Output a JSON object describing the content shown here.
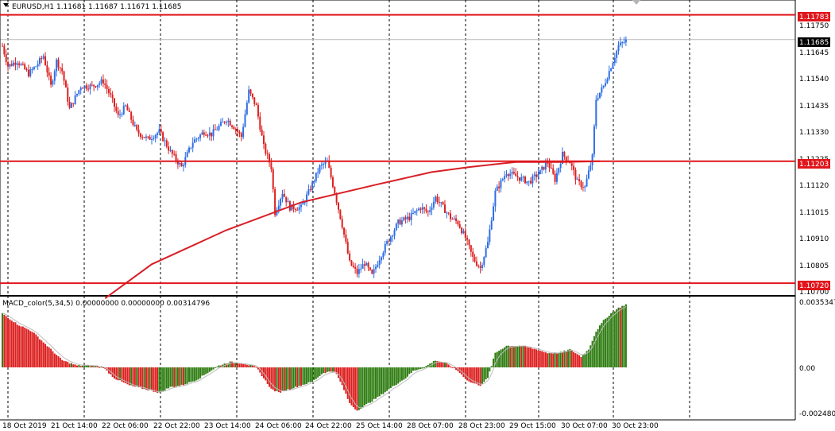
{
  "window": {
    "title": "EURUSD,H1  1.11681 1.11687 1.11671 1.11685",
    "collapse_icon": "triangle-down-icon"
  },
  "colors": {
    "bull": "#2f6ee5",
    "bear": "#dd2020",
    "level_line": "#e0161b",
    "ma_line": "#d81f26",
    "macd_up": "#2f7d12",
    "macd_down": "#dd2020",
    "signal_line": "#bdbdbd",
    "grid": "#000000",
    "bid_line": "#b9b9b9"
  },
  "price_axis": {
    "labels": [
      "1.11750",
      "1.11645",
      "1.11540",
      "1.11435",
      "1.11330",
      "1.11225",
      "1.11120",
      "1.11015",
      "1.10910",
      "1.10805",
      "1.10700"
    ],
    "tags": [
      {
        "text": "1.11783",
        "kind": "level"
      },
      {
        "text": "1.11685",
        "kind": "bid"
      },
      {
        "text": "1.11203",
        "kind": "level"
      },
      {
        "text": "1.10720",
        "kind": "level"
      }
    ]
  },
  "macd_panel": {
    "title": "MACD_color(5,34,5) 0.00000000 0.00000000 0.00314796",
    "labels": [
      "0.0035347",
      "0.00",
      "-0.002480"
    ]
  },
  "time_axis": {
    "labels": [
      "18 Oct 2019",
      "21 Oct 14:00",
      "22 Oct 06:00",
      "22 Oct 22:00",
      "23 Oct 14:00",
      "24 Oct 06:00",
      "24 Oct 22:00",
      "25 Oct 14:00",
      "28 Oct 07:00",
      "28 Oct 23:00",
      "29 Oct 15:00",
      "30 Oct 07:00",
      "30 Oct 23:00"
    ]
  },
  "chart_data": {
    "type": "candlestick",
    "symbol": "EURUSD",
    "timeframe": "H1",
    "y_range": [
      1.1067,
      1.1181
    ],
    "horizontal_levels": [
      1.11783,
      1.11203,
      1.1072
    ],
    "bid": 1.11685,
    "price_path": [
      [
        0,
        1.1166
      ],
      [
        3,
        1.1158
      ],
      [
        8,
        1.116
      ],
      [
        14,
        1.1155
      ],
      [
        18,
        1.1158
      ],
      [
        22,
        1.1162
      ],
      [
        26,
        1.115
      ],
      [
        29,
        1.116
      ],
      [
        32,
        1.1156
      ],
      [
        36,
        1.1141
      ],
      [
        42,
        1.115
      ],
      [
        48,
        1.115
      ],
      [
        54,
        1.1152
      ],
      [
        58,
        1.1146
      ],
      [
        62,
        1.1138
      ],
      [
        66,
        1.1142
      ],
      [
        72,
        1.1132
      ],
      [
        78,
        1.1129
      ],
      [
        84,
        1.1132
      ],
      [
        90,
        1.1124
      ],
      [
        96,
        1.1118
      ],
      [
        102,
        1.1128
      ],
      [
        108,
        1.1132
      ],
      [
        112,
        1.1131
      ],
      [
        116,
        1.1134
      ],
      [
        120,
        1.1137
      ],
      [
        124,
        1.1134
      ],
      [
        128,
        1.113
      ],
      [
        132,
        1.1148
      ],
      [
        136,
        1.1142
      ],
      [
        140,
        1.1126
      ],
      [
        144,
        1.1118
      ],
      [
        146,
        1.11
      ],
      [
        150,
        1.1108
      ],
      [
        154,
        1.1102
      ],
      [
        160,
        1.1102
      ],
      [
        164,
        1.1108
      ],
      [
        170,
        1.1118
      ],
      [
        174,
        1.112
      ],
      [
        178,
        1.1108
      ],
      [
        182,
        1.1095
      ],
      [
        186,
        1.108
      ],
      [
        190,
        1.1076
      ],
      [
        194,
        1.108
      ],
      [
        198,
        1.1075
      ],
      [
        202,
        1.1082
      ],
      [
        206,
        1.1088
      ],
      [
        212,
        1.1096
      ],
      [
        218,
        1.1098
      ],
      [
        224,
        1.1102
      ],
      [
        228,
        1.11
      ],
      [
        232,
        1.1106
      ],
      [
        236,
        1.1102
      ],
      [
        240,
        1.1098
      ],
      [
        244,
        1.1096
      ],
      [
        248,
        1.109
      ],
      [
        252,
        1.1082
      ],
      [
        256,
        1.1078
      ],
      [
        260,
        1.1088
      ],
      [
        264,
        1.1108
      ],
      [
        270,
        1.1116
      ],
      [
        276,
        1.1114
      ],
      [
        282,
        1.1112
      ],
      [
        288,
        1.1116
      ],
      [
        292,
        1.112
      ],
      [
        296,
        1.1113
      ],
      [
        300,
        1.1123
      ],
      [
        304,
        1.112
      ],
      [
        308,
        1.1112
      ],
      [
        312,
        1.111
      ],
      [
        316,
        1.1122
      ],
      [
        318,
        1.1145
      ],
      [
        322,
        1.115
      ],
      [
        326,
        1.1158
      ],
      [
        330,
        1.1166
      ],
      [
        334,
        1.1168
      ]
    ],
    "ma_path": [
      [
        55,
        1.1066
      ],
      [
        80,
        1.10795
      ],
      [
        120,
        1.1093
      ],
      [
        160,
        1.1104
      ],
      [
        200,
        1.1111
      ],
      [
        230,
        1.1116
      ],
      [
        250,
        1.1118
      ],
      [
        275,
        1.112
      ],
      [
        300,
        1.112
      ],
      [
        320,
        1.11203
      ]
    ],
    "macd_path": [
      [
        0,
        0.003
      ],
      [
        8,
        0.0024
      ],
      [
        16,
        0.002
      ],
      [
        24,
        0.0012
      ],
      [
        32,
        0.0004
      ],
      [
        40,
        0.0001
      ],
      [
        48,
        0.0001
      ],
      [
        54,
        0.0
      ],
      [
        60,
        -0.0006
      ],
      [
        68,
        -0.001
      ],
      [
        76,
        -0.0012
      ],
      [
        84,
        -0.0014
      ],
      [
        90,
        -0.0011
      ],
      [
        96,
        -0.001
      ],
      [
        104,
        -0.0007
      ],
      [
        110,
        -0.0003
      ],
      [
        116,
        0.0001
      ],
      [
        122,
        0.0003
      ],
      [
        130,
        0.0002
      ],
      [
        136,
        0.0
      ],
      [
        140,
        -0.0006
      ],
      [
        144,
        -0.0012
      ],
      [
        148,
        -0.0014
      ],
      [
        154,
        -0.0012
      ],
      [
        160,
        -0.001
      ],
      [
        166,
        -0.0008
      ],
      [
        172,
        -0.0003
      ],
      [
        178,
        -0.0002
      ],
      [
        182,
        -0.001
      ],
      [
        186,
        -0.002
      ],
      [
        190,
        -0.0024
      ],
      [
        196,
        -0.002
      ],
      [
        202,
        -0.0016
      ],
      [
        210,
        -0.001
      ],
      [
        216,
        -0.0006
      ],
      [
        220,
        -0.0002
      ],
      [
        226,
        0.0
      ],
      [
        232,
        0.0004
      ],
      [
        238,
        0.0002
      ],
      [
        244,
        -0.0002
      ],
      [
        250,
        -0.0008
      ],
      [
        256,
        -0.001
      ],
      [
        260,
        -0.0006
      ],
      [
        264,
        0.0008
      ],
      [
        270,
        0.0012
      ],
      [
        278,
        0.0012
      ],
      [
        286,
        0.001
      ],
      [
        292,
        0.0008
      ],
      [
        298,
        0.0008
      ],
      [
        304,
        0.001
      ],
      [
        310,
        0.0006
      ],
      [
        314,
        0.001
      ],
      [
        318,
        0.002
      ],
      [
        322,
        0.0026
      ],
      [
        326,
        0.003
      ],
      [
        330,
        0.0033
      ],
      [
        334,
        0.0035
      ]
    ]
  }
}
